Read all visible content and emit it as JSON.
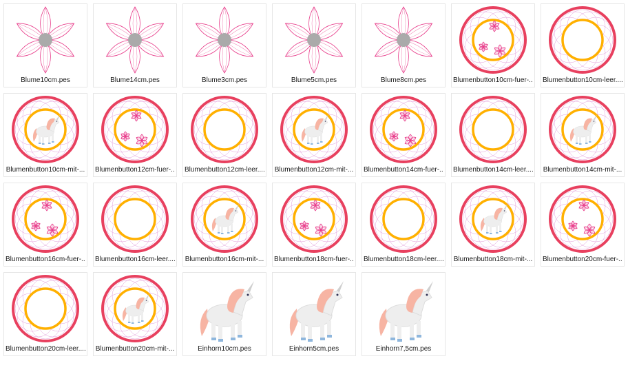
{
  "colors": {
    "petal": "#e83f8c",
    "ring_outer": "#e8405f",
    "ring_inner": "#ffb000",
    "lace": "#d572c9",
    "center": "#aaaaaa",
    "mane": "#f7b4a3",
    "hoof": "#8fb7dd",
    "border": "#e6e6e6"
  },
  "files": [
    {
      "label": "Blume10cm.pes",
      "thumb": "flower"
    },
    {
      "label": "Blume14cm.pes",
      "thumb": "flower"
    },
    {
      "label": "Blume3cm.pes",
      "thumb": "flower"
    },
    {
      "label": "Blume5cm.pes",
      "thumb": "flower"
    },
    {
      "label": "Blume8cm.pes",
      "thumb": "flower"
    },
    {
      "label": "Blumenbutton10cm-fuer-...",
      "thumb": "button-flowers"
    },
    {
      "label": "Blumenbutton10cm-leer....",
      "thumb": "button-empty"
    },
    {
      "label": "Blumenbutton10cm-mit-...",
      "thumb": "button-unicorn"
    },
    {
      "label": "Blumenbutton12cm-fuer-...",
      "thumb": "button-flowers"
    },
    {
      "label": "Blumenbutton12cm-leer....",
      "thumb": "button-empty"
    },
    {
      "label": "Blumenbutton12cm-mit-...",
      "thumb": "button-unicorn"
    },
    {
      "label": "Blumenbutton14cm-fuer-...",
      "thumb": "button-flowers"
    },
    {
      "label": "Blumenbutton14cm-leer....",
      "thumb": "button-empty"
    },
    {
      "label": "Blumenbutton14cm-mit-...",
      "thumb": "button-unicorn"
    },
    {
      "label": "Blumenbutton16cm-fuer-...",
      "thumb": "button-flowers"
    },
    {
      "label": "Blumenbutton16cm-leer....",
      "thumb": "button-empty"
    },
    {
      "label": "Blumenbutton16cm-mit-...",
      "thumb": "button-unicorn"
    },
    {
      "label": "Blumenbutton18cm-fuer-...",
      "thumb": "button-flowers"
    },
    {
      "label": "Blumenbutton18cm-leer....",
      "thumb": "button-empty"
    },
    {
      "label": "Blumenbutton18cm-mit-...",
      "thumb": "button-unicorn"
    },
    {
      "label": "Blumenbutton20cm-fuer-...",
      "thumb": "button-flowers"
    },
    {
      "label": "Blumenbutton20cm-leer....",
      "thumb": "button-empty"
    },
    {
      "label": "Blumenbutton20cm-mit-...",
      "thumb": "button-unicorn"
    },
    {
      "label": "Einhorn10cm.pes",
      "thumb": "unicorn"
    },
    {
      "label": "Einhorn5cm.pes",
      "thumb": "unicorn"
    },
    {
      "label": "Einhorn7,5cm.pes",
      "thumb": "unicorn"
    }
  ]
}
